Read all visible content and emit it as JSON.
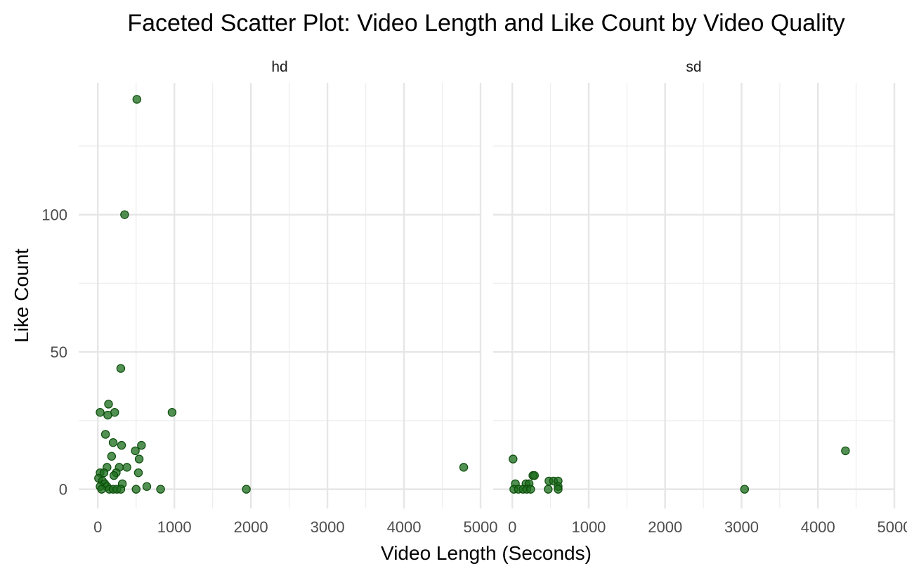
{
  "chart_data": {
    "type": "scatter",
    "title": "Faceted Scatter Plot: Video Length and Like Count by Video Quality",
    "xlabel": "Video Length (Seconds)",
    "ylabel": "Like Count",
    "xlim": [
      -250,
      5000
    ],
    "ylim": [
      -7,
      148
    ],
    "x_ticks": [
      0,
      1000,
      2000,
      3000,
      4000,
      5000
    ],
    "y_ticks": [
      0,
      50,
      100
    ],
    "grid": true,
    "legend": "none",
    "point_color": "#1a6b1a",
    "point_alpha": 0.75,
    "facets": [
      {
        "label": "hd",
        "points": [
          {
            "x": 510,
            "y": 142
          },
          {
            "x": 350,
            "y": 100
          },
          {
            "x": 300,
            "y": 44
          },
          {
            "x": 140,
            "y": 31
          },
          {
            "x": 30,
            "y": 28
          },
          {
            "x": 220,
            "y": 28
          },
          {
            "x": 970,
            "y": 28
          },
          {
            "x": 130,
            "y": 27
          },
          {
            "x": 100,
            "y": 20
          },
          {
            "x": 200,
            "y": 17
          },
          {
            "x": 310,
            "y": 16
          },
          {
            "x": 570,
            "y": 16
          },
          {
            "x": 490,
            "y": 14
          },
          {
            "x": 180,
            "y": 12
          },
          {
            "x": 540,
            "y": 11
          },
          {
            "x": 120,
            "y": 8
          },
          {
            "x": 280,
            "y": 8
          },
          {
            "x": 380,
            "y": 8
          },
          {
            "x": 4780,
            "y": 8
          },
          {
            "x": 30,
            "y": 6
          },
          {
            "x": 80,
            "y": 6
          },
          {
            "x": 240,
            "y": 6
          },
          {
            "x": 530,
            "y": 6
          },
          {
            "x": 210,
            "y": 5
          },
          {
            "x": 10,
            "y": 4
          },
          {
            "x": 60,
            "y": 3
          },
          {
            "x": 90,
            "y": 2
          },
          {
            "x": 320,
            "y": 2
          },
          {
            "x": 30,
            "y": 1
          },
          {
            "x": 120,
            "y": 1
          },
          {
            "x": 640,
            "y": 1
          },
          {
            "x": 50,
            "y": 0
          },
          {
            "x": 150,
            "y": 0
          },
          {
            "x": 200,
            "y": 0
          },
          {
            "x": 250,
            "y": 0
          },
          {
            "x": 300,
            "y": 0
          },
          {
            "x": 500,
            "y": 0
          },
          {
            "x": 820,
            "y": 0
          },
          {
            "x": 1940,
            "y": 0
          }
        ]
      },
      {
        "label": "sd",
        "points": [
          {
            "x": 10,
            "y": 11
          },
          {
            "x": 4360,
            "y": 14
          },
          {
            "x": 270,
            "y": 5
          },
          {
            "x": 290,
            "y": 5
          },
          {
            "x": 480,
            "y": 3
          },
          {
            "x": 540,
            "y": 3
          },
          {
            "x": 600,
            "y": 3
          },
          {
            "x": 40,
            "y": 2
          },
          {
            "x": 180,
            "y": 2
          },
          {
            "x": 220,
            "y": 2
          },
          {
            "x": 600,
            "y": 1
          },
          {
            "x": 20,
            "y": 0
          },
          {
            "x": 80,
            "y": 0
          },
          {
            "x": 140,
            "y": 0
          },
          {
            "x": 190,
            "y": 0
          },
          {
            "x": 240,
            "y": 0
          },
          {
            "x": 470,
            "y": 0
          },
          {
            "x": 600,
            "y": 0
          },
          {
            "x": 3040,
            "y": 0
          }
        ]
      }
    ]
  }
}
